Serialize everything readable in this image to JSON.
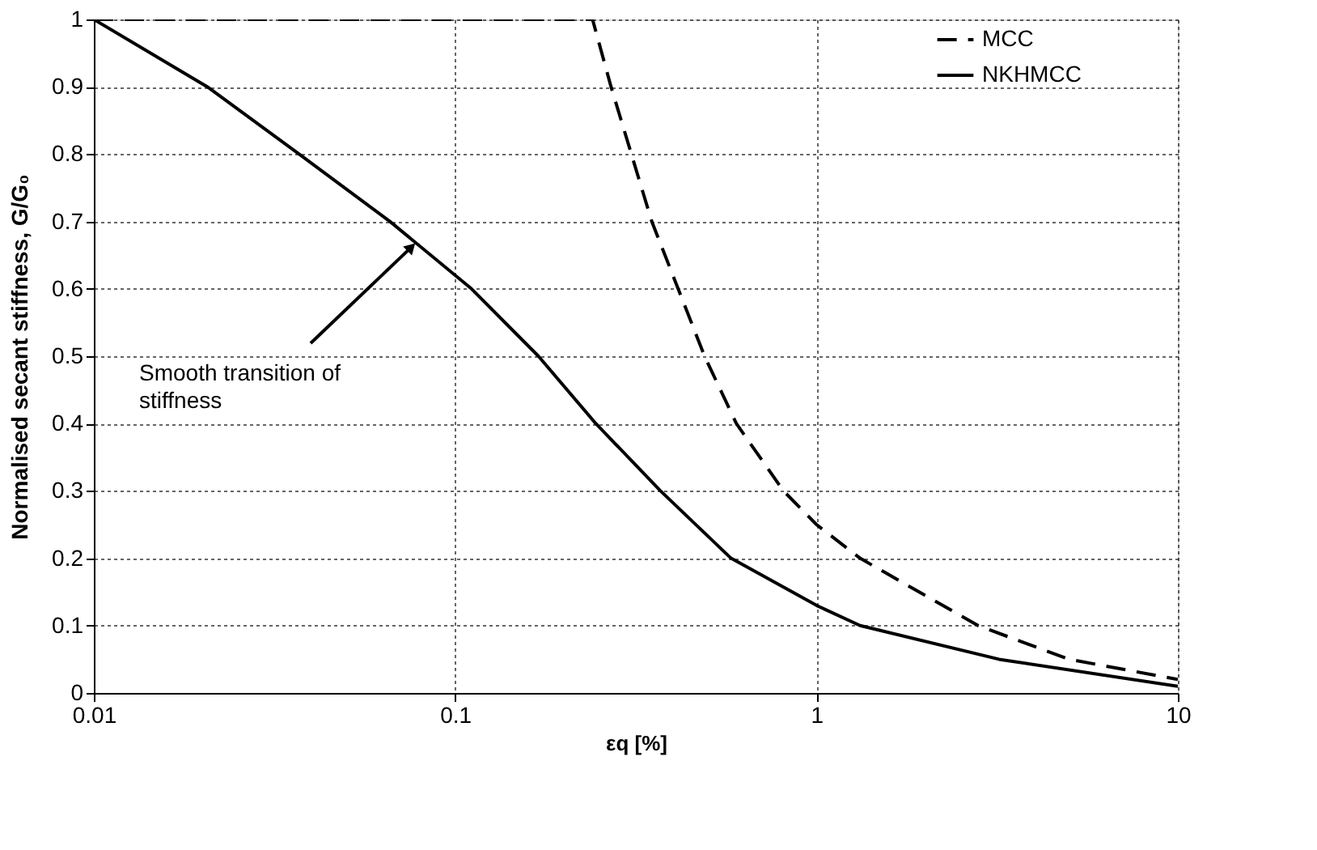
{
  "chart_data": {
    "type": "line",
    "xlabel": "εq [%]",
    "ylabel": "Normalised secant stiffness, G/G₀",
    "log": "x",
    "xlim": [
      0.01,
      10
    ],
    "xticks": [
      0.01,
      0.1,
      1,
      10
    ],
    "ylim": [
      0,
      1
    ],
    "yticks": [
      0,
      0.1,
      0.2,
      0.3,
      0.4,
      0.5,
      0.6,
      0.7,
      0.8,
      0.9,
      1
    ],
    "grid": true,
    "legend": "right",
    "marker": "none",
    "series": [
      {
        "name": "MCC",
        "color": "#000000",
        "line_style": "dashed",
        "x": [
          0.01,
          0.24,
          0.27,
          0.35,
          0.49,
          0.6,
          0.81,
          1,
          1.32,
          2.8,
          5,
          10
        ],
        "values": [
          1,
          1,
          0.9,
          0.7,
          0.5,
          0.4,
          0.3,
          0.25,
          0.2,
          0.1,
          0.05,
          0.02
        ]
      },
      {
        "name": "NKHMCC",
        "color": "#000000",
        "line_style": "solid",
        "x": [
          0.01,
          0.0206,
          0.037,
          0.066,
          0.111,
          0.17,
          0.245,
          0.37,
          0.58,
          1,
          1.32,
          3.2,
          10
        ],
        "values": [
          1,
          0.9,
          0.8,
          0.7,
          0.6,
          0.5,
          0.4,
          0.3,
          0.2,
          0.13,
          0.1,
          0.05,
          0.01
        ]
      }
    ],
    "annotations": [
      {
        "text": "Smooth transition of stiffness",
        "x": 0.075,
        "y": 0.66
      }
    ]
  }
}
